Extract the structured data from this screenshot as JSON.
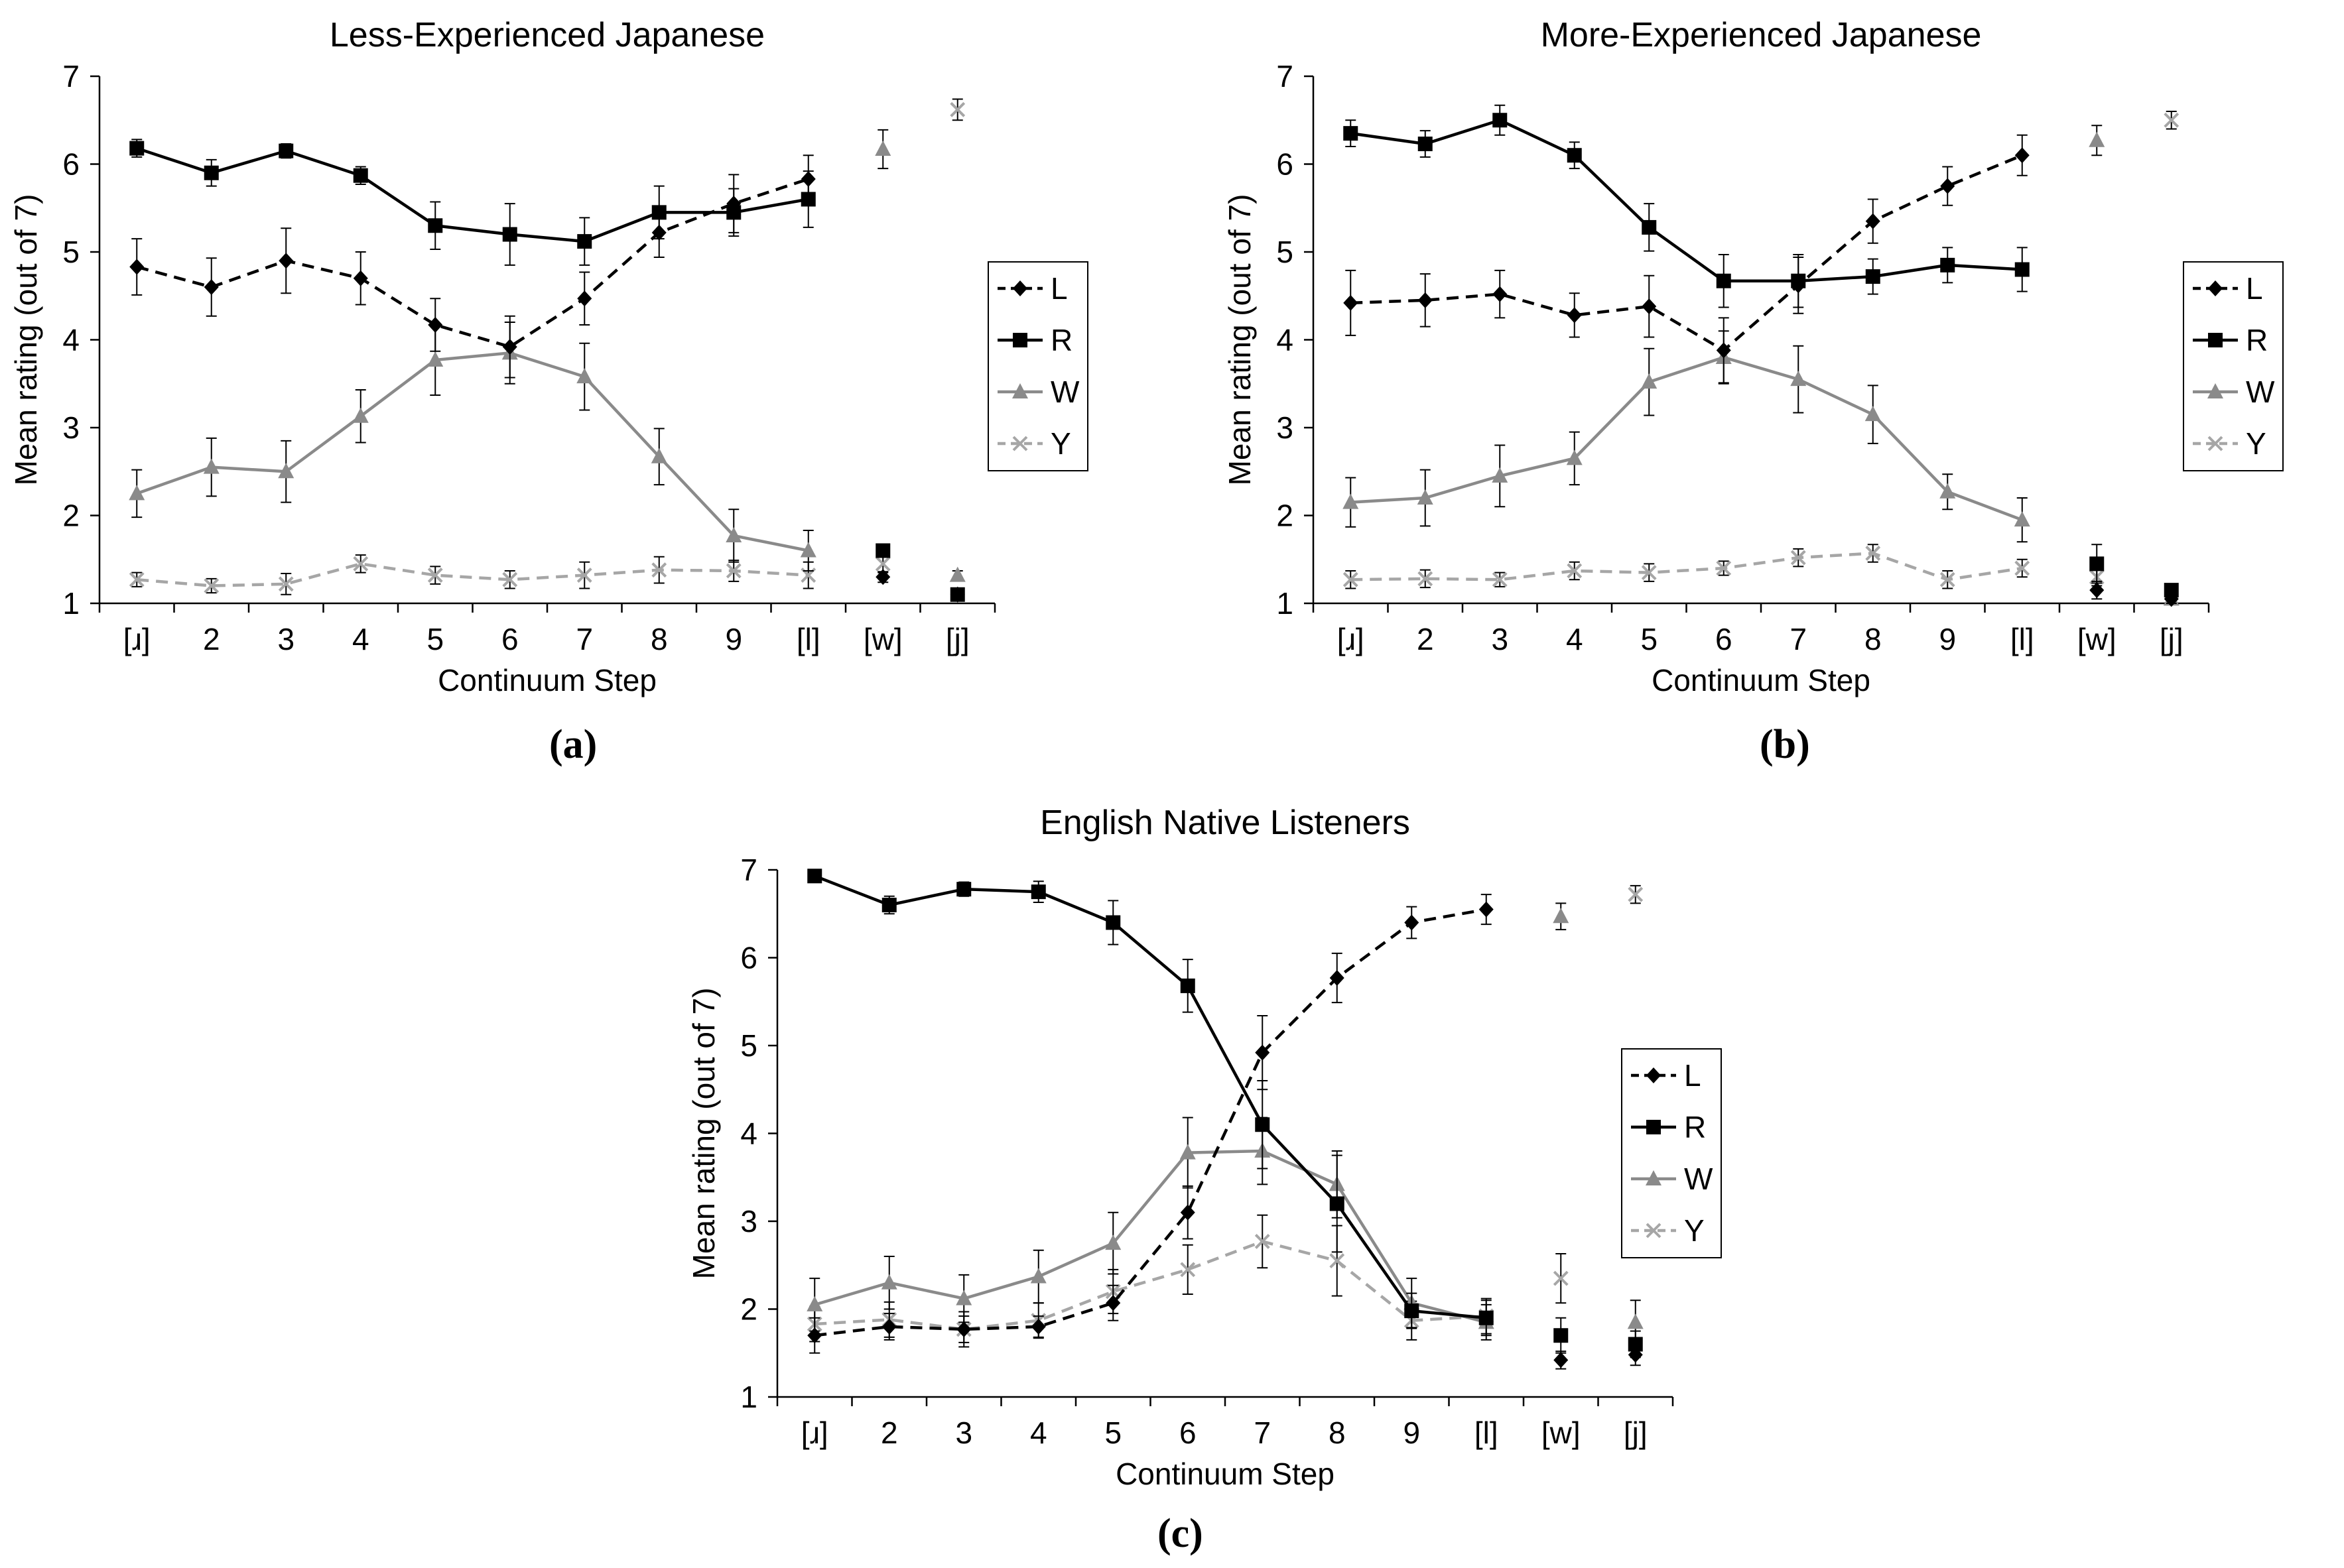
{
  "chart_data": [
    {
      "id": "a",
      "type": "line",
      "sublabel": "(a)",
      "title": "Less-Experienced Japanese",
      "xlabel": "Continuum Step",
      "ylabel": "Mean rating (out of 7)",
      "ylim": [
        1,
        7
      ],
      "yticks": [
        "1",
        "2",
        "3",
        "4",
        "5",
        "6",
        "7"
      ],
      "categories": [
        "[ɹ]",
        "2",
        "3",
        "4",
        "5",
        "6",
        "7",
        "8",
        "9",
        "[l]",
        "[w]",
        "[j]"
      ],
      "legend": [
        "L",
        "R",
        "W",
        "Y"
      ],
      "series": [
        {
          "name": "L",
          "values": [
            4.83,
            4.6,
            4.9,
            4.7,
            4.17,
            3.92,
            4.47,
            5.22,
            5.55,
            5.83,
            1.3,
            1.1
          ],
          "err": [
            0.32,
            0.33,
            0.37,
            0.3,
            0.3,
            0.35,
            0.3,
            0.28,
            0.33,
            0.27,
            0.06,
            0.05
          ]
        },
        {
          "name": "R",
          "values": [
            6.18,
            5.9,
            6.15,
            5.87,
            5.3,
            5.2,
            5.12,
            5.45,
            5.45,
            5.6,
            1.6,
            1.1
          ],
          "err": [
            0.1,
            0.15,
            0.08,
            0.1,
            0.27,
            0.35,
            0.27,
            0.3,
            0.27,
            0.32,
            0.06,
            0.05
          ]
        },
        {
          "name": "W",
          "values": [
            2.25,
            2.55,
            2.5,
            3.13,
            3.77,
            3.85,
            3.58,
            2.67,
            1.77,
            1.6,
            6.17,
            1.32
          ],
          "err": [
            0.27,
            0.33,
            0.35,
            0.3,
            0.4,
            0.35,
            0.38,
            0.32,
            0.3,
            0.23,
            0.22,
            0.05
          ]
        },
        {
          "name": "Y",
          "values": [
            1.27,
            1.2,
            1.22,
            1.45,
            1.32,
            1.27,
            1.32,
            1.38,
            1.37,
            1.32,
            1.45,
            6.62
          ],
          "err": [
            0.08,
            0.08,
            0.12,
            0.1,
            0.1,
            0.1,
            0.15,
            0.15,
            0.12,
            0.15,
            0.1,
            0.12
          ]
        }
      ]
    },
    {
      "id": "b",
      "type": "line",
      "sublabel": "(b)",
      "title": "More-Experienced Japanese",
      "xlabel": "Continuum Step",
      "ylabel": "Mean rating (out of 7)",
      "ylim": [
        1,
        7
      ],
      "yticks": [
        "1",
        "2",
        "3",
        "4",
        "5",
        "6",
        "7"
      ],
      "categories": [
        "[ɹ]",
        "2",
        "3",
        "4",
        "5",
        "6",
        "7",
        "8",
        "9",
        "[l]",
        "[w]",
        "[j]"
      ],
      "legend": [
        "L",
        "R",
        "W",
        "Y"
      ],
      "series": [
        {
          "name": "L",
          "values": [
            4.42,
            4.45,
            4.52,
            4.28,
            4.38,
            3.88,
            4.62,
            5.35,
            5.75,
            6.1,
            1.15,
            1.05
          ],
          "err": [
            0.37,
            0.3,
            0.27,
            0.25,
            0.35,
            0.37,
            0.32,
            0.25,
            0.22,
            0.23,
            0.1,
            0.05
          ]
        },
        {
          "name": "R",
          "values": [
            6.35,
            6.23,
            6.5,
            6.1,
            5.28,
            4.67,
            4.67,
            4.72,
            4.85,
            4.8,
            1.45,
            1.15
          ],
          "err": [
            0.15,
            0.15,
            0.17,
            0.15,
            0.27,
            0.3,
            0.3,
            0.2,
            0.2,
            0.25,
            0.22,
            0.05
          ]
        },
        {
          "name": "W",
          "values": [
            2.15,
            2.2,
            2.45,
            2.65,
            3.52,
            3.8,
            3.55,
            3.15,
            2.27,
            1.95,
            6.27,
            1.05
          ],
          "err": [
            0.28,
            0.32,
            0.35,
            0.3,
            0.38,
            0.3,
            0.38,
            0.33,
            0.2,
            0.25,
            0.17,
            0.05
          ]
        },
        {
          "name": "Y",
          "values": [
            1.27,
            1.28,
            1.27,
            1.37,
            1.35,
            1.4,
            1.52,
            1.57,
            1.27,
            1.4,
            1.3,
            6.5
          ],
          "err": [
            0.1,
            0.1,
            0.08,
            0.1,
            0.1,
            0.08,
            0.1,
            0.1,
            0.1,
            0.1,
            0.1,
            0.1
          ]
        }
      ]
    },
    {
      "id": "c",
      "type": "line",
      "sublabel": "(c)",
      "title": "English Native Listeners",
      "xlabel": "Continuum Step",
      "ylabel": "Mean rating (out of 7)",
      "ylim": [
        1,
        7
      ],
      "yticks": [
        "1",
        "2",
        "3",
        "4",
        "5",
        "6",
        "7"
      ],
      "categories": [
        "[ɹ]",
        "2",
        "3",
        "4",
        "5",
        "6",
        "7",
        "8",
        "9",
        "[l]",
        "[w]",
        "[j]"
      ],
      "legend": [
        "L",
        "R",
        "W",
        "Y"
      ],
      "series": [
        {
          "name": "L",
          "values": [
            1.7,
            1.8,
            1.77,
            1.8,
            2.07,
            3.1,
            4.92,
            5.77,
            6.4,
            6.55,
            1.42,
            1.48
          ],
          "err": [
            0.2,
            0.15,
            0.15,
            0.12,
            0.2,
            0.3,
            0.42,
            0.28,
            0.18,
            0.17,
            0.1,
            0.12
          ]
        },
        {
          "name": "R",
          "values": [
            6.93,
            6.6,
            6.78,
            6.75,
            6.4,
            5.68,
            4.1,
            3.2,
            1.98,
            1.9,
            1.7,
            1.6
          ],
          "err": [
            0.03,
            0.1,
            0.08,
            0.12,
            0.25,
            0.3,
            0.5,
            0.55,
            0.2,
            0.2,
            0.2,
            0.15
          ]
        },
        {
          "name": "W",
          "values": [
            2.05,
            2.3,
            2.12,
            2.37,
            2.75,
            3.78,
            3.8,
            3.42,
            2.07,
            1.85,
            6.47,
            1.85
          ],
          "err": [
            0.3,
            0.3,
            0.27,
            0.3,
            0.35,
            0.4,
            0.38,
            0.38,
            0.28,
            0.2,
            0.15,
            0.25
          ]
        },
        {
          "name": "Y",
          "values": [
            1.83,
            1.88,
            1.77,
            1.87,
            2.2,
            2.45,
            2.77,
            2.55,
            1.87,
            1.92,
            2.35,
            6.72
          ],
          "err": [
            0.2,
            0.2,
            0.2,
            0.2,
            0.25,
            0.28,
            0.3,
            0.4,
            0.22,
            0.2,
            0.28,
            0.1
          ]
        }
      ]
    }
  ]
}
